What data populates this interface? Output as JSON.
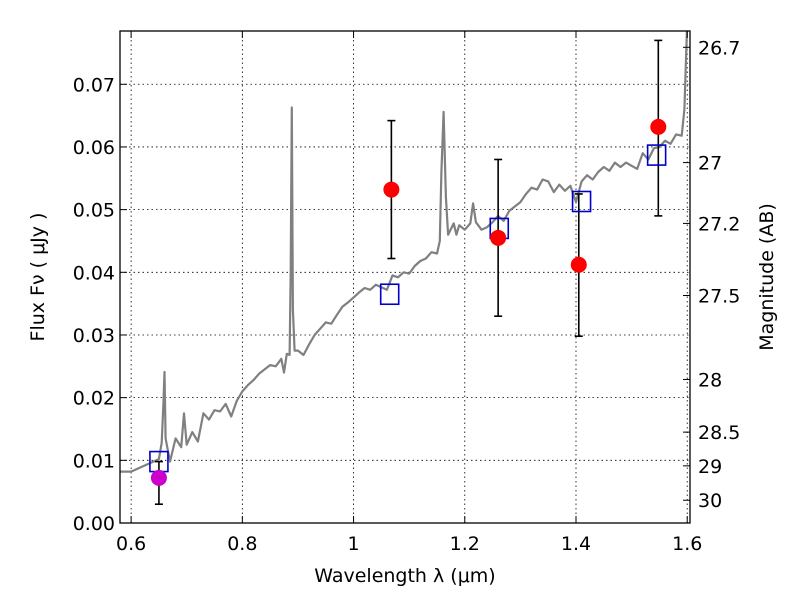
{
  "chart_data": {
    "type": "scatter",
    "xlabel": "Wavelength  λ (μm)",
    "ylabel": "Flux  Fν  ( μJy )",
    "ylabel_right": "Magnitude (AB)",
    "xlim": [
      0.58,
      1.605
    ],
    "ylim": [
      0.0,
      0.0785
    ],
    "grid": true,
    "x_ticks": [
      0.6,
      0.8,
      1.0,
      1.2,
      1.4,
      1.6
    ],
    "x_tick_labels": [
      "0.6",
      "0.8",
      "1",
      "1.2",
      "1.4",
      "1.6"
    ],
    "y_ticks": [
      0.0,
      0.01,
      0.02,
      0.03,
      0.04,
      0.05,
      0.06,
      0.07
    ],
    "y_tick_labels": [
      "0.00",
      "0.01",
      "0.02",
      "0.03",
      "0.04",
      "0.05",
      "0.06",
      "0.07"
    ],
    "right_ticks": [
      {
        "label": "26.7",
        "flux": 0.0759
      },
      {
        "label": "27",
        "flux": 0.0575
      },
      {
        "label": "27.2",
        "flux": 0.0478
      },
      {
        "label": "27.5",
        "flux": 0.0363
      },
      {
        "label": "28",
        "flux": 0.0229
      },
      {
        "label": "28.5",
        "flux": 0.0145
      },
      {
        "label": "29",
        "flux": 0.00912
      },
      {
        "label": "30",
        "flux": 0.00363
      }
    ],
    "series": [
      {
        "kind": "spectrum",
        "color": "#808080",
        "points": [
          [
            0.58,
            0.0082
          ],
          [
            0.6,
            0.0082
          ],
          [
            0.62,
            0.009
          ],
          [
            0.64,
            0.0098
          ],
          [
            0.65,
            0.0102
          ],
          [
            0.655,
            0.0128
          ],
          [
            0.658,
            0.019
          ],
          [
            0.66,
            0.0241
          ],
          [
            0.662,
            0.0135
          ],
          [
            0.67,
            0.0098
          ],
          [
            0.68,
            0.0135
          ],
          [
            0.69,
            0.0121
          ],
          [
            0.695,
            0.0175
          ],
          [
            0.7,
            0.0125
          ],
          [
            0.71,
            0.0145
          ],
          [
            0.72,
            0.013
          ],
          [
            0.73,
            0.0175
          ],
          [
            0.74,
            0.0165
          ],
          [
            0.75,
            0.018
          ],
          [
            0.76,
            0.0178
          ],
          [
            0.77,
            0.019
          ],
          [
            0.78,
            0.017
          ],
          [
            0.79,
            0.0195
          ],
          [
            0.8,
            0.021
          ],
          [
            0.81,
            0.022
          ],
          [
            0.82,
            0.0228
          ],
          [
            0.83,
            0.0238
          ],
          [
            0.84,
            0.0245
          ],
          [
            0.85,
            0.0252
          ],
          [
            0.86,
            0.025
          ],
          [
            0.87,
            0.0262
          ],
          [
            0.875,
            0.024
          ],
          [
            0.88,
            0.027
          ],
          [
            0.885,
            0.0268
          ],
          [
            0.887,
            0.04
          ],
          [
            0.889,
            0.0663
          ],
          [
            0.891,
            0.034
          ],
          [
            0.894,
            0.0275
          ],
          [
            0.9,
            0.0275
          ],
          [
            0.91,
            0.0268
          ],
          [
            0.92,
            0.0285
          ],
          [
            0.93,
            0.03
          ],
          [
            0.94,
            0.031
          ],
          [
            0.95,
            0.032
          ],
          [
            0.96,
            0.0318
          ],
          [
            0.97,
            0.0332
          ],
          [
            0.98,
            0.0345
          ],
          [
            0.99,
            0.0352
          ],
          [
            1.0,
            0.036
          ],
          [
            1.01,
            0.0368
          ],
          [
            1.02,
            0.0375
          ],
          [
            1.03,
            0.0372
          ],
          [
            1.04,
            0.038
          ],
          [
            1.05,
            0.0376
          ],
          [
            1.06,
            0.0372
          ],
          [
            1.07,
            0.0395
          ],
          [
            1.08,
            0.0392
          ],
          [
            1.09,
            0.04
          ],
          [
            1.1,
            0.0398
          ],
          [
            1.11,
            0.041
          ],
          [
            1.12,
            0.0418
          ],
          [
            1.13,
            0.0422
          ],
          [
            1.14,
            0.0432
          ],
          [
            1.15,
            0.043
          ],
          [
            1.155,
            0.045
          ],
          [
            1.158,
            0.056
          ],
          [
            1.162,
            0.0656
          ],
          [
            1.166,
            0.052
          ],
          [
            1.17,
            0.046
          ],
          [
            1.18,
            0.0478
          ],
          [
            1.185,
            0.046
          ],
          [
            1.19,
            0.0475
          ],
          [
            1.2,
            0.0468
          ],
          [
            1.21,
            0.0478
          ],
          [
            1.215,
            0.051
          ],
          [
            1.22,
            0.048
          ],
          [
            1.23,
            0.0468
          ],
          [
            1.24,
            0.0472
          ],
          [
            1.25,
            0.048
          ],
          [
            1.26,
            0.049
          ],
          [
            1.27,
            0.0482
          ],
          [
            1.28,
            0.0498
          ],
          [
            1.29,
            0.0505
          ],
          [
            1.3,
            0.0512
          ],
          [
            1.31,
            0.0525
          ],
          [
            1.32,
            0.0535
          ],
          [
            1.33,
            0.0532
          ],
          [
            1.34,
            0.0548
          ],
          [
            1.35,
            0.0545
          ],
          [
            1.36,
            0.0528
          ],
          [
            1.37,
            0.054
          ],
          [
            1.38,
            0.053
          ],
          [
            1.39,
            0.0538
          ],
          [
            1.4,
            0.0512
          ],
          [
            1.41,
            0.0545
          ],
          [
            1.42,
            0.0555
          ],
          [
            1.43,
            0.0548
          ],
          [
            1.44,
            0.056
          ],
          [
            1.45,
            0.0568
          ],
          [
            1.46,
            0.0562
          ],
          [
            1.47,
            0.0575
          ],
          [
            1.48,
            0.0568
          ],
          [
            1.49,
            0.0575
          ],
          [
            1.5,
            0.057
          ],
          [
            1.51,
            0.0565
          ],
          [
            1.52,
            0.059
          ],
          [
            1.53,
            0.058
          ],
          [
            1.54,
            0.0598
          ],
          [
            1.55,
            0.06
          ],
          [
            1.56,
            0.061
          ],
          [
            1.57,
            0.0605
          ],
          [
            1.58,
            0.062
          ],
          [
            1.59,
            0.0618
          ],
          [
            1.595,
            0.066
          ],
          [
            1.6,
            0.08
          ]
        ]
      },
      {
        "kind": "model",
        "marker": "square",
        "color": "#0000cc",
        "points": [
          [
            0.65,
            0.0098
          ],
          [
            1.065,
            0.0365
          ],
          [
            1.262,
            0.047
          ],
          [
            1.41,
            0.0513
          ],
          [
            1.545,
            0.0587
          ]
        ]
      },
      {
        "kind": "observed",
        "marker": "circle",
        "color": "#ff0000",
        "points": [
          {
            "x": 1.068,
            "y": 0.0532,
            "ylo": 0.0422,
            "yhi": 0.0642
          },
          {
            "x": 1.26,
            "y": 0.0455,
            "ylo": 0.033,
            "yhi": 0.058
          },
          {
            "x": 1.405,
            "y": 0.0412,
            "ylo": 0.0298,
            "yhi": 0.0525
          },
          {
            "x": 1.548,
            "y": 0.0632,
            "ylo": 0.049,
            "yhi": 0.077
          }
        ]
      },
      {
        "kind": "observed",
        "marker": "circle",
        "color": "#cc00cc",
        "points": [
          {
            "x": 0.65,
            "y": 0.0072,
            "ylo": 0.003,
            "yhi": 0.0098
          }
        ]
      }
    ]
  }
}
